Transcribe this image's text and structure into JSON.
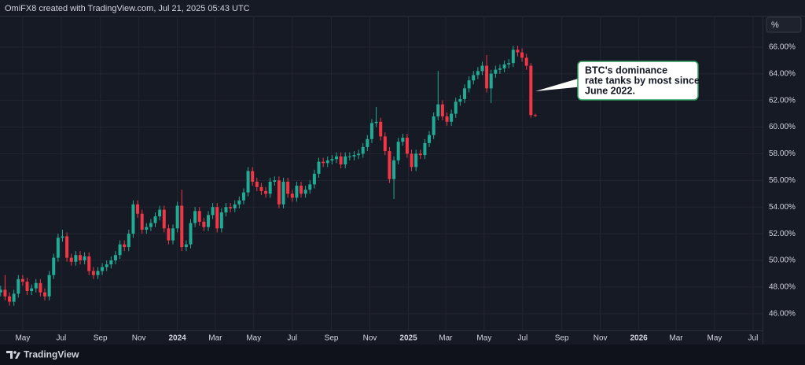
{
  "header": "OmiFX8 created with TradingView.com, Jul 21, 2025 05:43 UTC",
  "footer": "TradingView",
  "scale_button": "%",
  "chart_data": {
    "type": "candlestick",
    "up_color": "#22ab94",
    "down_color": "#f23645",
    "grid": true,
    "annotation": [
      "BTC's dominance",
      "rate tanks by most since",
      "June 2022."
    ],
    "x": [
      "2023-03-27",
      "2023-04-03",
      "2023-04-10",
      "2023-04-17",
      "2023-04-24",
      "2023-05-01",
      "2023-05-08",
      "2023-05-15",
      "2023-05-22",
      "2023-05-29",
      "2023-06-05",
      "2023-06-12",
      "2023-06-19",
      "2023-06-26",
      "2023-07-03",
      "2023-07-10",
      "2023-07-17",
      "2023-07-24",
      "2023-07-31",
      "2023-08-07",
      "2023-08-14",
      "2023-08-21",
      "2023-08-28",
      "2023-09-04",
      "2023-09-11",
      "2023-09-18",
      "2023-09-25",
      "2023-10-02",
      "2023-10-09",
      "2023-10-16",
      "2023-10-23",
      "2023-10-30",
      "2023-11-06",
      "2023-11-13",
      "2023-11-20",
      "2023-11-27",
      "2023-12-04",
      "2023-12-11",
      "2023-12-18",
      "2023-12-25",
      "2024-01-01",
      "2024-01-08",
      "2024-01-15",
      "2024-01-22",
      "2024-01-29",
      "2024-02-05",
      "2024-02-12",
      "2024-02-19",
      "2024-02-26",
      "2024-03-04",
      "2024-03-11",
      "2024-03-18",
      "2024-03-25",
      "2024-04-01",
      "2024-04-08",
      "2024-04-15",
      "2024-04-22",
      "2024-04-29",
      "2024-05-06",
      "2024-05-13",
      "2024-05-20",
      "2024-05-27",
      "2024-06-03",
      "2024-06-10",
      "2024-06-17",
      "2024-06-24",
      "2024-07-01",
      "2024-07-08",
      "2024-07-15",
      "2024-07-22",
      "2024-07-29",
      "2024-08-05",
      "2024-08-12",
      "2024-08-19",
      "2024-08-26",
      "2024-09-02",
      "2024-09-09",
      "2024-09-16",
      "2024-09-23",
      "2024-09-30",
      "2024-10-07",
      "2024-10-14",
      "2024-10-21",
      "2024-10-28",
      "2024-11-04",
      "2024-11-11",
      "2024-11-18",
      "2024-11-25",
      "2024-12-02",
      "2024-12-09",
      "2024-12-16",
      "2024-12-23",
      "2024-12-30",
      "2025-01-06",
      "2025-01-13",
      "2025-01-20",
      "2025-01-27",
      "2025-02-03",
      "2025-02-10",
      "2025-02-17",
      "2025-02-24",
      "2025-03-03",
      "2025-03-10",
      "2025-03-17",
      "2025-03-24",
      "2025-03-31",
      "2025-04-07",
      "2025-04-14",
      "2025-04-21",
      "2025-04-28",
      "2025-05-05",
      "2025-05-12",
      "2025-05-19",
      "2025-05-26",
      "2025-06-02",
      "2025-06-09",
      "2025-06-16",
      "2025-06-23",
      "2025-06-30",
      "2025-07-07",
      "2025-07-14",
      "2025-07-21"
    ],
    "open": [
      47.6,
      47.8,
      47.3,
      46.9,
      47.5,
      48.6,
      48.4,
      47.7,
      47.9,
      48.3,
      47.6,
      47.3,
      48.9,
      50.2,
      51.7,
      51.8,
      50.2,
      49.9,
      50.4,
      50.0,
      50.3,
      49.2,
      48.9,
      49.2,
      49.5,
      49.7,
      50.0,
      50.4,
      51.2,
      51.0,
      52.0,
      54.2,
      53.5,
      52.3,
      52.5,
      52.8,
      53.3,
      53.8,
      52.4,
      51.5,
      52.4,
      54.1,
      51.0,
      51.2,
      52.8,
      53.7,
      52.9,
      52.5,
      53.4,
      54.0,
      52.4,
      53.6,
      54.0,
      53.9,
      54.2,
      54.5,
      55.1,
      56.7,
      55.9,
      55.5,
      55.2,
      55.0,
      55.9,
      56.0,
      54.2,
      55.9,
      55.0,
      54.7,
      55.6,
      55.0,
      55.3,
      55.7,
      56.5,
      57.4,
      57.3,
      57.5,
      57.6,
      57.8,
      57.2,
      57.8,
      57.8,
      57.9,
      58.0,
      58.5,
      59.1,
      60.3,
      60.4,
      59.3,
      58.2,
      56.1,
      57.5,
      58.9,
      59.2,
      58.0,
      57.0,
      58.0,
      57.9,
      58.8,
      59.4,
      60.8,
      61.7,
      60.8,
      60.4,
      61.0,
      61.9,
      62.1,
      62.9,
      63.5,
      63.9,
      64.2,
      64.6,
      62.9,
      64.0,
      64.3,
      64.4,
      64.7,
      64.8,
      65.8,
      65.6,
      65.2,
      64.6,
      60.9
    ],
    "high": [
      48.1,
      48.9,
      47.6,
      47.8,
      48.9,
      48.9,
      48.7,
      48.2,
      48.6,
      48.6,
      47.9,
      49.2,
      50.5,
      52.0,
      52.3,
      52.1,
      50.5,
      50.7,
      50.7,
      50.6,
      50.6,
      49.5,
      49.5,
      49.8,
      50.0,
      50.3,
      50.7,
      51.5,
      51.5,
      52.3,
      54.5,
      54.5,
      53.8,
      52.8,
      53.1,
      53.6,
      54.1,
      54.1,
      52.7,
      52.7,
      54.4,
      55.3,
      51.5,
      53.1,
      54.0,
      54.0,
      53.2,
      53.7,
      54.3,
      54.3,
      53.9,
      54.3,
      54.3,
      54.5,
      54.8,
      55.4,
      57.0,
      57.0,
      56.2,
      55.8,
      55.5,
      56.2,
      56.3,
      56.3,
      56.2,
      56.2,
      55.3,
      55.9,
      55.9,
      55.6,
      56.0,
      56.8,
      57.7,
      57.7,
      57.8,
      57.9,
      58.1,
      58.1,
      58.1,
      58.1,
      58.2,
      58.3,
      58.8,
      59.4,
      60.6,
      61.5,
      60.7,
      59.6,
      58.5,
      57.8,
      59.2,
      59.5,
      59.5,
      58.3,
      58.3,
      58.3,
      59.1,
      59.7,
      61.1,
      64.2,
      62.0,
      61.1,
      61.3,
      62.2,
      62.4,
      63.2,
      63.8,
      64.2,
      64.5,
      64.9,
      65.4,
      64.3,
      64.6,
      64.7,
      65.0,
      65.1,
      66.1,
      66.1,
      65.9,
      65.5,
      64.8,
      61.0
    ],
    "low": [
      47.3,
      47.0,
      46.6,
      46.6,
      47.2,
      48.1,
      47.4,
      47.4,
      47.6,
      47.3,
      47.0,
      47.0,
      48.6,
      49.9,
      51.4,
      49.9,
      49.6,
      49.6,
      49.7,
      49.7,
      48.9,
      48.6,
      48.6,
      48.9,
      49.2,
      49.4,
      49.7,
      50.1,
      50.7,
      50.7,
      51.7,
      53.2,
      52.0,
      52.0,
      52.2,
      52.5,
      53.0,
      52.1,
      51.2,
      51.2,
      52.1,
      50.7,
      50.7,
      50.9,
      52.5,
      52.6,
      52.2,
      52.2,
      53.1,
      52.1,
      52.1,
      53.3,
      53.6,
      53.6,
      53.9,
      54.2,
      54.8,
      55.6,
      55.2,
      54.9,
      54.7,
      54.7,
      55.6,
      53.9,
      53.9,
      54.7,
      54.4,
      54.4,
      54.7,
      54.7,
      55.0,
      55.4,
      56.2,
      57.0,
      57.0,
      57.2,
      57.3,
      56.9,
      56.9,
      57.5,
      57.5,
      57.6,
      57.7,
      58.2,
      58.8,
      60.0,
      59.0,
      57.9,
      55.8,
      54.6,
      57.2,
      58.6,
      57.7,
      56.7,
      56.7,
      57.6,
      57.6,
      58.5,
      59.1,
      60.5,
      60.5,
      60.1,
      60.1,
      60.7,
      61.6,
      61.8,
      62.6,
      63.2,
      63.6,
      63.9,
      62.6,
      61.8,
      63.7,
      64.0,
      64.1,
      64.4,
      64.5,
      65.3,
      64.9,
      64.3,
      60.7,
      60.75
    ],
    "close": [
      47.8,
      47.3,
      46.9,
      47.5,
      48.6,
      48.4,
      47.7,
      47.9,
      48.3,
      47.6,
      47.3,
      48.9,
      50.2,
      51.7,
      51.8,
      50.2,
      49.9,
      50.4,
      50.0,
      50.3,
      49.2,
      48.9,
      49.2,
      49.5,
      49.7,
      50.0,
      50.4,
      51.2,
      51.0,
      52.0,
      54.2,
      53.5,
      52.3,
      52.5,
      52.8,
      53.3,
      53.8,
      52.4,
      51.5,
      52.4,
      54.1,
      51.0,
      51.2,
      52.8,
      53.7,
      52.9,
      52.5,
      53.4,
      54.0,
      52.4,
      53.6,
      54.0,
      53.9,
      54.2,
      54.5,
      55.1,
      56.7,
      55.9,
      55.5,
      55.2,
      55.0,
      55.9,
      56.0,
      54.2,
      55.9,
      55.0,
      54.7,
      55.6,
      55.0,
      55.3,
      55.7,
      56.5,
      57.4,
      57.3,
      57.5,
      57.6,
      57.8,
      57.2,
      57.8,
      57.8,
      57.9,
      58.0,
      58.5,
      59.1,
      60.3,
      60.4,
      59.3,
      58.2,
      56.1,
      57.5,
      58.9,
      59.2,
      58.0,
      57.0,
      58.0,
      57.9,
      58.8,
      59.4,
      60.8,
      61.7,
      60.8,
      60.4,
      61.0,
      61.9,
      62.1,
      62.9,
      63.5,
      63.9,
      64.2,
      64.6,
      62.9,
      64.0,
      64.3,
      64.4,
      64.7,
      64.8,
      65.8,
      65.6,
      65.2,
      64.6,
      60.9,
      60.85
    ],
    "ylim": [
      44.75,
      68.35
    ],
    "yticks": [
      {
        "value": 46,
        "label": "46.00%"
      },
      {
        "value": 48,
        "label": "48.00%"
      },
      {
        "value": 50,
        "label": "50.00%"
      },
      {
        "value": 52,
        "label": "52.00%"
      },
      {
        "value": 54,
        "label": "54.00%"
      },
      {
        "value": 56,
        "label": "56.00%"
      },
      {
        "value": 58,
        "label": "58.00%"
      },
      {
        "value": 60,
        "label": "60.00%"
      },
      {
        "value": 62,
        "label": "62.00%"
      },
      {
        "value": 64,
        "label": "64.00%"
      },
      {
        "value": 66,
        "label": "66.00%"
      }
    ],
    "xlim": [
      "2023-03-26",
      "2026-07-16"
    ],
    "xticks": [
      {
        "value": "2023-05-01",
        "label": "May"
      },
      {
        "value": "2023-07-01",
        "label": "Jul"
      },
      {
        "value": "2023-09-01",
        "label": "Sep"
      },
      {
        "value": "2023-11-01",
        "label": "Nov"
      },
      {
        "value": "2024-01-01",
        "label": "2024"
      },
      {
        "value": "2024-03-01",
        "label": "Mar"
      },
      {
        "value": "2024-05-01",
        "label": "May"
      },
      {
        "value": "2024-07-01",
        "label": "Jul"
      },
      {
        "value": "2024-09-01",
        "label": "Sep"
      },
      {
        "value": "2024-11-01",
        "label": "Nov"
      },
      {
        "value": "2025-01-01",
        "label": "2025"
      },
      {
        "value": "2025-03-01",
        "label": "Mar"
      },
      {
        "value": "2025-05-01",
        "label": "May"
      },
      {
        "value": "2025-07-01",
        "label": "Jul"
      },
      {
        "value": "2025-09-01",
        "label": "Sep"
      },
      {
        "value": "2025-11-01",
        "label": "Nov"
      },
      {
        "value": "2026-01-01",
        "label": "2026"
      },
      {
        "value": "2026-03-01",
        "label": "Mar"
      },
      {
        "value": "2026-05-01",
        "label": "May"
      },
      {
        "value": "2026-07-01",
        "label": "Jul"
      }
    ]
  }
}
